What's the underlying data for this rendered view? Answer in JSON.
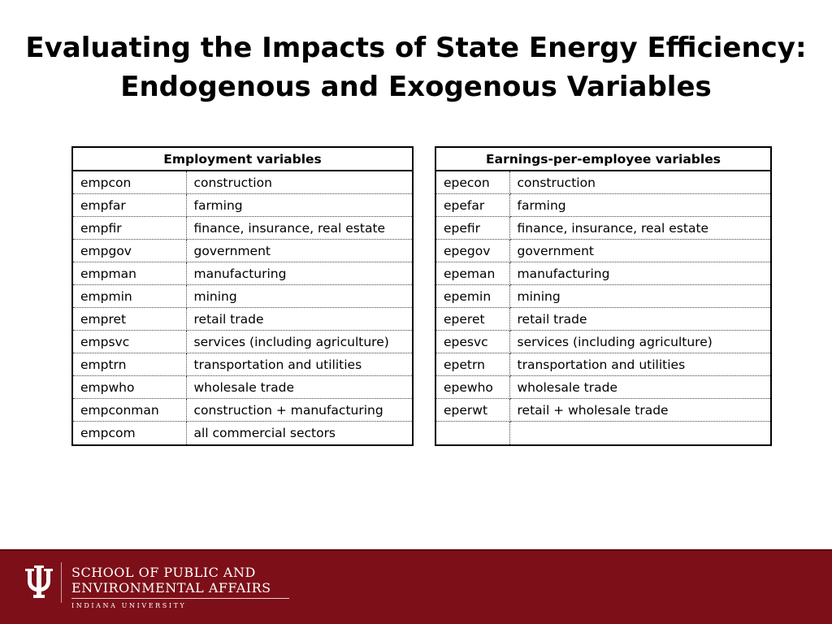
{
  "title": {
    "line1": "Evaluating the Impacts of State Energy Efficiency:",
    "line2": "Endogenous and Exogenous  Variables"
  },
  "employment_table": {
    "header": "Employment variables",
    "rows": [
      {
        "code": "empcon",
        "desc": "construction"
      },
      {
        "code": "empfar",
        "desc": "farming"
      },
      {
        "code": "empfir",
        "desc": "finance, insurance, real estate"
      },
      {
        "code": "empgov",
        "desc": "government"
      },
      {
        "code": "empman",
        "desc": "manufacturing"
      },
      {
        "code": "empmin",
        "desc": "mining"
      },
      {
        "code": "empret",
        "desc": "retail trade"
      },
      {
        "code": "empsvc",
        "desc": "services (including agriculture)"
      },
      {
        "code": "emptrn",
        "desc": "transportation and utilities"
      },
      {
        "code": "empwho",
        "desc": "wholesale trade"
      },
      {
        "code": "empconman",
        "desc": "construction + manufacturing"
      },
      {
        "code": "empcom",
        "desc": "all commercial sectors"
      }
    ]
  },
  "earnings_table": {
    "header": "Earnings-per-employee variables",
    "rows": [
      {
        "code": "epecon",
        "desc": "construction"
      },
      {
        "code": "epefar",
        "desc": "farming"
      },
      {
        "code": "epefir",
        "desc": "finance, insurance, real estate"
      },
      {
        "code": "epegov",
        "desc": "government"
      },
      {
        "code": "epeman",
        "desc": "manufacturing"
      },
      {
        "code": "epemin",
        "desc": "mining"
      },
      {
        "code": "eperet",
        "desc": "retail trade"
      },
      {
        "code": "epesvc",
        "desc": "services (including agriculture)"
      },
      {
        "code": "epetrn",
        "desc": "transportation and utilities"
      },
      {
        "code": "epewho",
        "desc": "wholesale trade"
      },
      {
        "code": "eperwt",
        "desc": "retail + wholesale trade"
      },
      {
        "code": "",
        "desc": ""
      }
    ]
  },
  "footer": {
    "school_line1": "SCHOOL OF PUBLIC AND",
    "school_line2": "ENVIRONMENTAL AFFAIRS",
    "university": "INDIANA UNIVERSITY",
    "logo_icon": "iu-trident-icon",
    "brand_color": "#7d0f18"
  }
}
